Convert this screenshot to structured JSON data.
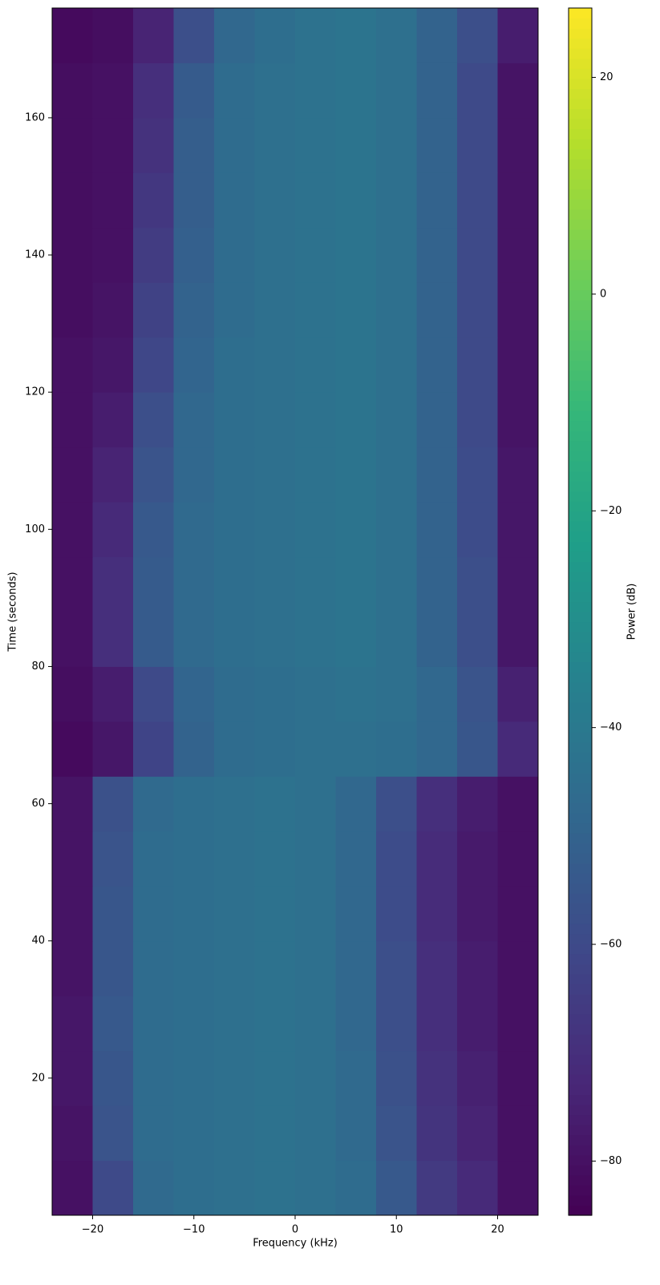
{
  "chart_data": {
    "type": "heatmap",
    "x_label": "Frequency (kHz)",
    "y_label": "Time (seconds)",
    "colorbar_label": "Power (dB)",
    "colormap": "viridis",
    "x_bins": [
      -24,
      -20,
      -16,
      -12,
      -8,
      -4,
      0,
      4,
      8,
      12,
      16,
      20,
      24
    ],
    "y_bins": [
      0,
      8,
      16,
      24,
      32,
      40,
      48,
      56,
      64,
      72,
      80,
      88,
      96,
      104,
      112,
      120,
      128,
      136,
      144,
      152,
      160,
      168,
      176
    ],
    "values": [
      [
        -80,
        -60,
        -47,
        -45,
        -44,
        -43,
        -44,
        -46,
        -54,
        -66,
        -72,
        -80
      ],
      [
        -79,
        -56,
        -46,
        -45,
        -44,
        -43,
        -44,
        -47,
        -56,
        -68,
        -74,
        -80
      ],
      [
        -78,
        -55,
        -46,
        -45,
        -44,
        -43,
        -44,
        -47,
        -57,
        -69,
        -75,
        -80
      ],
      [
        -78,
        -54,
        -46,
        -45,
        -44,
        -43,
        -44,
        -48,
        -58,
        -70,
        -76,
        -80
      ],
      [
        -79,
        -55,
        -46,
        -45,
        -44,
        -43,
        -44,
        -48,
        -58,
        -70,
        -76,
        -80
      ],
      [
        -79,
        -55,
        -46,
        -45,
        -44,
        -43,
        -44,
        -48,
        -59,
        -71,
        -77,
        -80
      ],
      [
        -79,
        -56,
        -46,
        -45,
        -44,
        -43,
        -44,
        -48,
        -59,
        -71,
        -77,
        -80
      ],
      [
        -79,
        -57,
        -47,
        -45,
        -44,
        -43,
        -44,
        -48,
        -58,
        -70,
        -76,
        -80
      ],
      [
        -82,
        -78,
        -62,
        -50,
        -46,
        -45,
        -44,
        -44,
        -45,
        -48,
        -55,
        -72
      ],
      [
        -81,
        -76,
        -60,
        -49,
        -46,
        -45,
        -44,
        -43,
        -44,
        -48,
        -56,
        -75
      ],
      [
        -80,
        -70,
        -53,
        -47,
        -45,
        -44,
        -43,
        -42,
        -44,
        -50,
        -58,
        -78
      ],
      [
        -80,
        -70,
        -53,
        -47,
        -45,
        -44,
        -43,
        -42,
        -44,
        -50,
        -58,
        -78
      ],
      [
        -80,
        -72,
        -54,
        -47,
        -45,
        -44,
        -43,
        -42,
        -44,
        -50,
        -59,
        -78
      ],
      [
        -80,
        -74,
        -56,
        -48,
        -45,
        -44,
        -43,
        -42,
        -44,
        -50,
        -59,
        -78
      ],
      [
        -80,
        -76,
        -58,
        -48,
        -45,
        -44,
        -43,
        -42,
        -44,
        -50,
        -60,
        -79
      ],
      [
        -80,
        -78,
        -61,
        -49,
        -45,
        -44,
        -43,
        -42,
        -44,
        -50,
        -60,
        -79
      ],
      [
        -81,
        -79,
        -63,
        -50,
        -46,
        -44,
        -43,
        -42,
        -44,
        -50,
        -60,
        -79
      ],
      [
        -81,
        -80,
        -65,
        -51,
        -46,
        -44,
        -43,
        -42,
        -44,
        -50,
        -60,
        -79
      ],
      [
        -81,
        -80,
        -67,
        -52,
        -46,
        -44,
        -43,
        -42,
        -44,
        -50,
        -60,
        -79
      ],
      [
        -81,
        -80,
        -69,
        -52,
        -46,
        -44,
        -43,
        -42,
        -44,
        -50,
        -60,
        -79
      ],
      [
        -81,
        -80,
        -70,
        -53,
        -46,
        -44,
        -43,
        -42,
        -44,
        -50,
        -60,
        -79
      ],
      [
        -82,
        -81,
        -74,
        -58,
        -48,
        -45,
        -43,
        -42,
        -44,
        -50,
        -58,
        -76
      ]
    ],
    "xlim": [
      -24,
      24
    ],
    "ylim": [
      0,
      176
    ],
    "clim": [
      -85,
      26.4
    ],
    "xticks": [
      {
        "value": -20,
        "label": "−20"
      },
      {
        "value": -10,
        "label": "−10"
      },
      0,
      10,
      20
    ],
    "yticks": [
      20,
      40,
      60,
      80,
      100,
      120,
      140,
      160
    ],
    "cticks": [
      {
        "value": -80,
        "label": "−80"
      },
      {
        "value": -60,
        "label": "−60"
      },
      {
        "value": -40,
        "label": "−40"
      },
      {
        "value": -20,
        "label": "−20"
      },
      0,
      20
    ]
  }
}
